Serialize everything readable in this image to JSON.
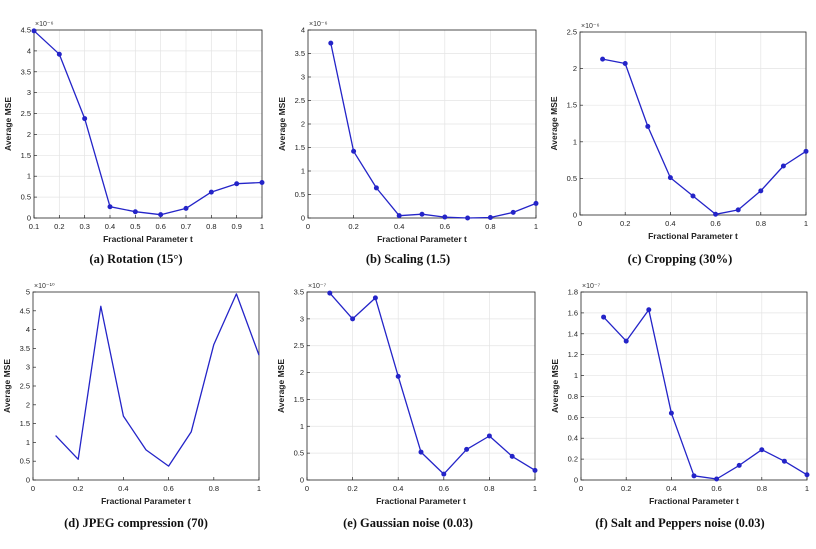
{
  "chart_data": [
    {
      "type": "line",
      "caption": "(a) Rotation (15°)",
      "xlabel": "Fractional Parameter t",
      "ylabel": "Average MSE",
      "exponent_label": "×10⁻⁶",
      "xlim": [
        0.1,
        1
      ],
      "ylim": [
        0,
        4.5
      ],
      "xticks": [
        0.1,
        0.2,
        0.3,
        0.4,
        0.5,
        0.6,
        0.7,
        0.8,
        0.9,
        1
      ],
      "xtick_labels": [
        "0.1",
        "0.2",
        "0.3",
        "0.4",
        "0.5",
        "0.6",
        "0.7",
        "0.8",
        "0.9",
        "1"
      ],
      "yticks": [
        0,
        0.5,
        1,
        1.5,
        2,
        2.5,
        3,
        3.5,
        4,
        4.5
      ],
      "ytick_labels": [
        "0",
        "0.5",
        "1",
        "1.5",
        "2",
        "2.5",
        "3",
        "3.5",
        "4",
        "4.5"
      ],
      "grid": true,
      "markers": true,
      "color": "#2424c8",
      "x": [
        0.1,
        0.2,
        0.3,
        0.4,
        0.5,
        0.6,
        0.7,
        0.8,
        0.9,
        1.0
      ],
      "y": [
        4.48,
        3.92,
        2.38,
        0.27,
        0.15,
        0.08,
        0.23,
        0.62,
        0.82,
        0.85
      ]
    },
    {
      "type": "line",
      "caption": "(b) Scaling (1.5)",
      "xlabel": "Fractional Parameter t",
      "ylabel": "Average MSE",
      "exponent_label": "×10⁻⁶",
      "xlim": [
        0,
        1
      ],
      "ylim": [
        0,
        4
      ],
      "xticks": [
        0,
        0.2,
        0.4,
        0.6,
        0.8,
        1
      ],
      "xtick_labels": [
        "0",
        "0.2",
        "0.4",
        "0.6",
        "0.8",
        "1"
      ],
      "yticks": [
        0,
        0.5,
        1,
        1.5,
        2,
        2.5,
        3,
        3.5,
        4
      ],
      "ytick_labels": [
        "0",
        "0.5",
        "1",
        "1.5",
        "2",
        "2.5",
        "3",
        "3.5",
        "4"
      ],
      "grid": true,
      "markers": true,
      "color": "#2424c8",
      "x": [
        0.1,
        0.2,
        0.3,
        0.4,
        0.5,
        0.6,
        0.7,
        0.8,
        0.9,
        1.0
      ],
      "y": [
        3.72,
        1.42,
        0.64,
        0.05,
        0.08,
        0.02,
        0.0,
        0.01,
        0.12,
        0.31
      ]
    },
    {
      "type": "line",
      "caption": "(c) Cropping (30%)",
      "xlabel": "Fractional Parameter t",
      "ylabel": "Average MSE",
      "exponent_label": "×10⁻⁶",
      "xlim": [
        0,
        1
      ],
      "ylim": [
        0,
        2.5
      ],
      "xticks": [
        0,
        0.2,
        0.4,
        0.6,
        0.8,
        1
      ],
      "xtick_labels": [
        "0",
        "0.2",
        "0.4",
        "0.6",
        "0.8",
        "1"
      ],
      "yticks": [
        0,
        0.5,
        1,
        1.5,
        2,
        2.5
      ],
      "ytick_labels": [
        "0",
        "0.5",
        "1",
        "1.5",
        "2",
        "2.5"
      ],
      "grid": true,
      "markers": true,
      "color": "#2424c8",
      "x": [
        0.1,
        0.2,
        0.3,
        0.4,
        0.5,
        0.6,
        0.7,
        0.8,
        0.9,
        1.0
      ],
      "y": [
        2.13,
        2.07,
        1.21,
        0.51,
        0.26,
        0.01,
        0.07,
        0.33,
        0.67,
        0.87
      ]
    },
    {
      "type": "line",
      "caption": "(d) JPEG compression (70)",
      "xlabel": "Fractional Parameter t",
      "ylabel": "Average MSE",
      "exponent_label": "×10⁻¹⁰",
      "xlim": [
        0,
        1
      ],
      "ylim": [
        0,
        5
      ],
      "xticks": [
        0,
        0.2,
        0.4,
        0.6,
        0.8,
        1
      ],
      "xtick_labels": [
        "0",
        "0.2",
        "0.4",
        "0.6",
        "0.8",
        "1"
      ],
      "yticks": [
        0,
        0.5,
        1,
        1.5,
        2,
        2.5,
        3,
        3.5,
        4,
        4.5,
        5
      ],
      "ytick_labels": [
        "0",
        "0.5",
        "1",
        "1.5",
        "2",
        "2.5",
        "3",
        "3.5",
        "4",
        "4.5",
        "5"
      ],
      "grid": false,
      "markers": false,
      "color": "#2424c8",
      "x": [
        0.1,
        0.2,
        0.3,
        0.4,
        0.5,
        0.6,
        0.7,
        0.8,
        0.9,
        1.0
      ],
      "y": [
        1.18,
        0.55,
        4.62,
        1.7,
        0.8,
        0.37,
        1.28,
        3.6,
        4.95,
        3.32
      ]
    },
    {
      "type": "line",
      "caption": "(e) Gaussian noise (0.03)",
      "xlabel": "Fractional Parameter t",
      "ylabel": "Average MSE",
      "exponent_label": "×10⁻⁷",
      "xlim": [
        0,
        1
      ],
      "ylim": [
        0,
        3.5
      ],
      "xticks": [
        0,
        0.2,
        0.4,
        0.6,
        0.8,
        1
      ],
      "xtick_labels": [
        "0",
        "0.2",
        "0.4",
        "0.6",
        "0.8",
        "1"
      ],
      "yticks": [
        0,
        0.5,
        1,
        1.5,
        2,
        2.5,
        3,
        3.5
      ],
      "ytick_labels": [
        "0",
        "0.5",
        "1",
        "1.5",
        "2",
        "2.5",
        "3",
        "3.5"
      ],
      "grid": true,
      "markers": true,
      "color": "#2424c8",
      "x": [
        0.1,
        0.2,
        0.3,
        0.4,
        0.5,
        0.6,
        0.7,
        0.8,
        0.9,
        1.0
      ],
      "y": [
        3.48,
        3.0,
        3.39,
        1.93,
        0.52,
        0.11,
        0.57,
        0.82,
        0.44,
        0.18
      ]
    },
    {
      "type": "line",
      "caption": "(f) Salt and Peppers noise (0.03)",
      "xlabel": "Fractional Parameter t",
      "ylabel": "Average MSE",
      "exponent_label": "×10⁻⁷",
      "xlim": [
        0,
        1
      ],
      "ylim": [
        0,
        1.8
      ],
      "xticks": [
        0,
        0.2,
        0.4,
        0.6,
        0.8,
        1
      ],
      "xtick_labels": [
        "0",
        "0.2",
        "0.4",
        "0.6",
        "0.8",
        "1"
      ],
      "yticks": [
        0,
        0.2,
        0.4,
        0.6,
        0.8,
        1,
        1.2,
        1.4,
        1.6,
        1.8
      ],
      "ytick_labels": [
        "0",
        "0.2",
        "0.4",
        "0.6",
        "0.8",
        "1",
        "1.2",
        "1.4",
        "1.6",
        "1.8"
      ],
      "grid": true,
      "markers": true,
      "color": "#2424c8",
      "x": [
        0.1,
        0.2,
        0.3,
        0.4,
        0.5,
        0.6,
        0.7,
        0.8,
        0.9,
        1.0
      ],
      "y": [
        1.56,
        1.33,
        1.63,
        0.64,
        0.04,
        0.01,
        0.14,
        0.29,
        0.18,
        0.05
      ]
    }
  ]
}
